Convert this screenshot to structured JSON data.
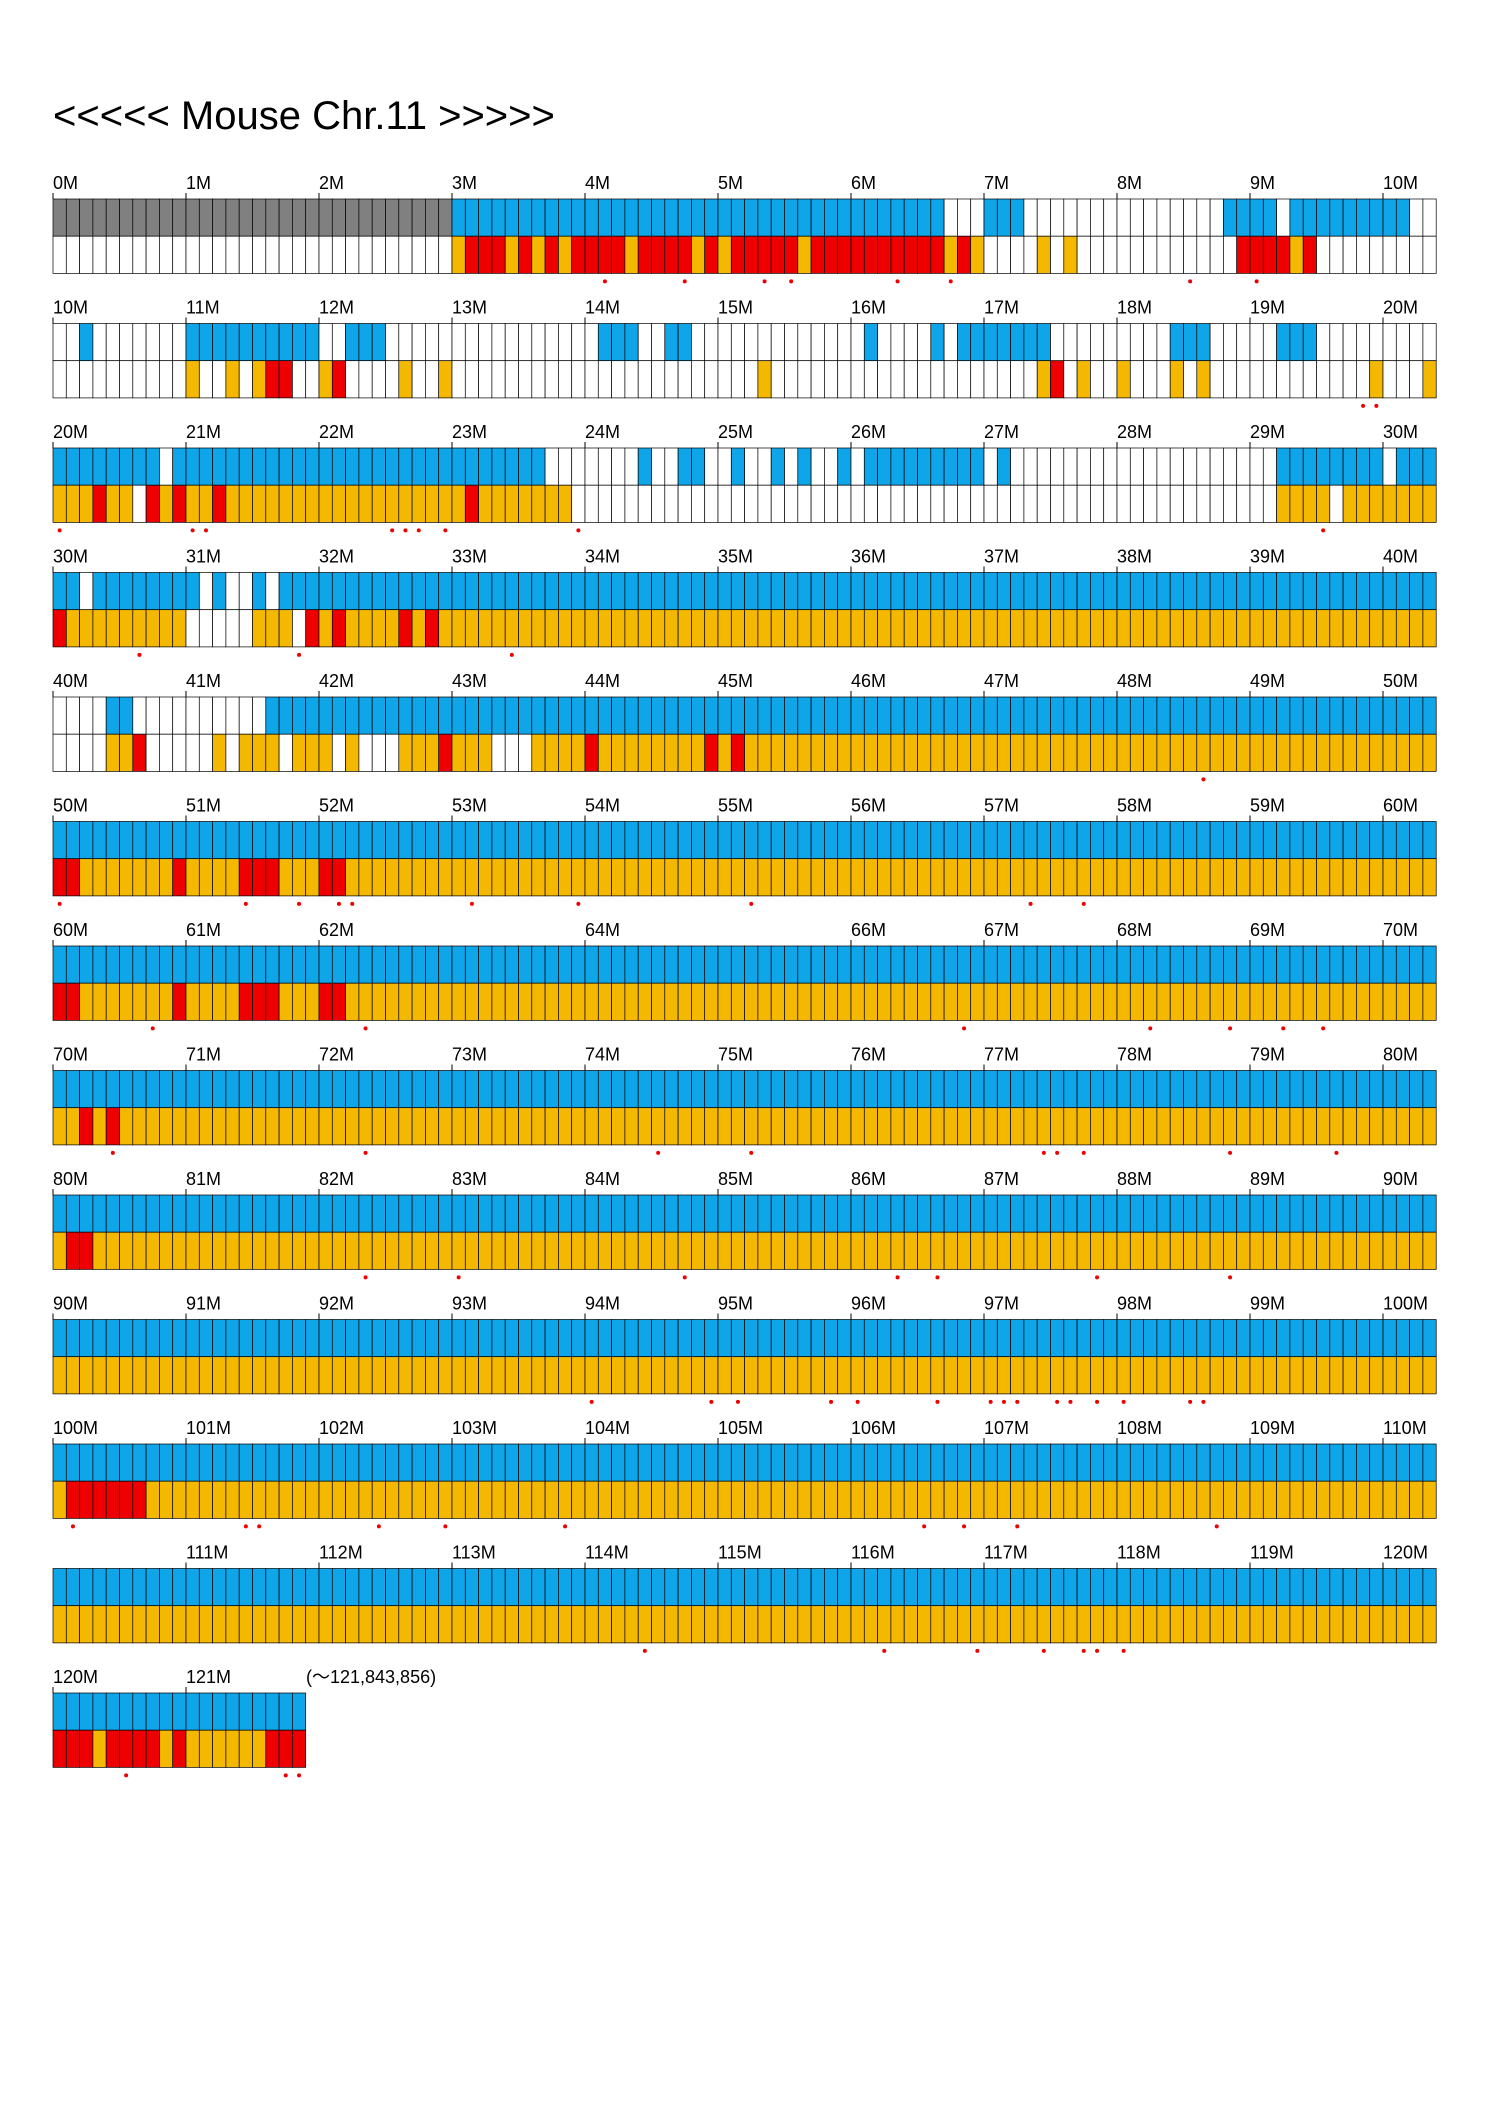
{
  "title": "<<<<< Mouse Chr.11 >>>>>",
  "end_label": "(〜121,843,856)",
  "colors": {
    "blue": "#0ea5e9",
    "orange": "#f5b800",
    "red": "#ee0000",
    "gray": "#808080",
    "empty": "#ffffff",
    "grid": "#000000",
    "marker": "#ee0000"
  },
  "legend_codes": {
    "0": "empty",
    "1": "blue",
    "2": "orange",
    "3": "red",
    "4": "gray"
  },
  "rows": [
    {
      "labels": [
        "0M",
        "1M",
        "2M",
        "3M",
        "4M",
        "5M",
        "6M",
        "7M",
        "8M",
        "9M",
        "10M"
      ],
      "top": "4444444444444444444444444444441111111111111111111111111111111111111000111000000000000000111101111111110000",
      "bottom": "0000000000000000000000000000002333232323333233332323333323333333333232000020200000000000033332300000000002",
      "markers": [
        41,
        47,
        53,
        55,
        63,
        67,
        85,
        90
      ]
    },
    {
      "labels": [
        "10M",
        "11M",
        "12M",
        "13M",
        "14M",
        "15M",
        "16M",
        "17M",
        "18M",
        "19M",
        "20M"
      ],
      "top": "0010000000111111111100111000000000000000011100110000000000000100001011111110000000001110000011100000000001",
      "bottom": "0000000000200202330023000020020000000000000000000000020000000000000000000023020020002020000000000002000223",
      "markers": [
        98,
        99
      ]
    },
    {
      "labels": [
        "20M",
        "21M",
        "22M",
        "23M",
        "24M",
        "25M",
        "26M",
        "27M",
        "28M",
        "29M",
        "30M"
      ],
      "top": "1111111101111111111111111111111111111000000010011001001010010111111111010000000000000000000011111111011111111",
      "bottom": "2223220323223222222222222222222322222220000000000000000000000000000000000000000000000000000022220222222233232",
      "markers": [
        0,
        10,
        11,
        25,
        26,
        27,
        29,
        39,
        95
      ]
    },
    {
      "labels": [
        "30M",
        "31M",
        "32M",
        "33M",
        "34M",
        "35M",
        "36M",
        "37M",
        "38M",
        "39M",
        "40M"
      ],
      "top": "1101111111101001011111111111111111111111111111111111111111111111111111111111111111111111111111111111111111111",
      "bottom": "3222222222000002220323222232322222222222222222222222222222222222222222222222222222222222222222222222222222222",
      "markers": [
        6,
        18,
        34
      ]
    },
    {
      "labels": [
        "40M",
        "41M",
        "42M",
        "43M",
        "44M",
        "45M",
        "46M",
        "47M",
        "48M",
        "49M",
        "50M"
      ],
      "top": "0000110000000000111111111111111111111111111111111111111111111111111111111111111111111111111111111111111111111",
      "bottom": "0000223000002022202220200022232220002222322222222323222222222222222222222222222222222222222222222222222222222",
      "markers": [
        86
      ]
    },
    {
      "labels": [
        "50M",
        "51M",
        "52M",
        "53M",
        "54M",
        "55M",
        "56M",
        "57M",
        "58M",
        "59M",
        "60M"
      ],
      "top": "1111111111111111111111111111111111111111111111111111111111111111111111111111111111111111111111111111111111111",
      "bottom": "3322222223222233322233222222222222222222222222222222222222222222222222222222222222222222222222222222222222222",
      "markers": [
        0,
        14,
        18,
        21,
        22,
        31,
        39,
        52,
        73,
        77
      ]
    },
    {
      "labels": [
        "60M",
        "61M",
        "62M",
        "64M",
        "66M",
        "67M",
        "68M",
        "69M",
        "70M"
      ],
      "top": "1111111111111111111111111111111111111111111111111111111111111111111111111111111111111111111111111111111111111",
      "bottom": "3322222223222233322233222222222222222222222222222222222222222222222222222222222222222222222222222222222222222",
      "markers": [
        7,
        23,
        68,
        82,
        88,
        92,
        95
      ]
    },
    {
      "labels": [
        "70M",
        "71M",
        "72M",
        "73M",
        "74M",
        "75M",
        "76M",
        "77M",
        "78M",
        "79M",
        "80M"
      ],
      "top": "1111111111111111111111111111111111111111111111111111111111111111111111111111111111111111111111111111111111111",
      "bottom": "2232322222222222222222222222222222222222222222222222222222222222222222222222222222222222222222222222222222222",
      "markers": [
        4,
        23,
        45,
        52,
        74,
        75,
        77,
        88,
        96
      ]
    },
    {
      "labels": [
        "80M",
        "81M",
        "82M",
        "83M",
        "84M",
        "85M",
        "86M",
        "87M",
        "88M",
        "89M",
        "90M"
      ],
      "top": "1111111111111111111111111111111111111111111111111111111111111111111111111111111111111111111111111111111111111",
      "bottom": "2332222222222222222222222222222222222222222222222222222222222222222222222222222222222222222222222222222222222",
      "markers": [
        23,
        30,
        47,
        63,
        66,
        78,
        88
      ]
    },
    {
      "labels": [
        "90M",
        "91M",
        "92M",
        "93M",
        "94M",
        "95M",
        "96M",
        "97M",
        "98M",
        "99M",
        "100M"
      ],
      "top": "1111111111111111111111111111111111111111111111111111111111111111111111111111111111111111111111111111111111111",
      "bottom": "2222222222222222222222222222222222222222222222222222222222222222222222222222222222222222222222222222222222222",
      "markers": [
        40,
        49,
        51,
        58,
        60,
        66,
        70,
        71,
        72,
        75,
        76,
        78,
        80,
        85,
        86
      ]
    },
    {
      "labels": [
        "100M",
        "101M",
        "102M",
        "103M",
        "104M",
        "105M",
        "106M",
        "107M",
        "108M",
        "109M",
        "110M"
      ],
      "top": "1111111111111111111111111111111111111111111111111111111111111111111111111111111111111111111111111111111111111",
      "bottom": "2333333222222222222222222222222222222222222222222222222222222222222222222222222222222222222222222222222222222",
      "markers": [
        1,
        14,
        15,
        24,
        29,
        38,
        65,
        68,
        72,
        87
      ]
    },
    {
      "labels": [
        "111M",
        "112M",
        "113M",
        "114M",
        "115M",
        "116M",
        "117M",
        "118M",
        "119M",
        "120M"
      ],
      "top": "1111111111111111111111111111111111111111111111111111111111111111111111111111111111111111111111111111111111111",
      "bottom": "2222222222222222222222222222222222222222222222222222222222222222222222222222222222222222222222222222222222222",
      "markers": [
        44,
        62,
        69,
        74,
        77,
        78,
        80
      ]
    },
    {
      "labels": [
        "120M",
        "121M"
      ],
      "top": "1111111111111111111",
      "bottom": "3332333323222222333",
      "markers": [
        5,
        17,
        18
      ]
    }
  ]
}
